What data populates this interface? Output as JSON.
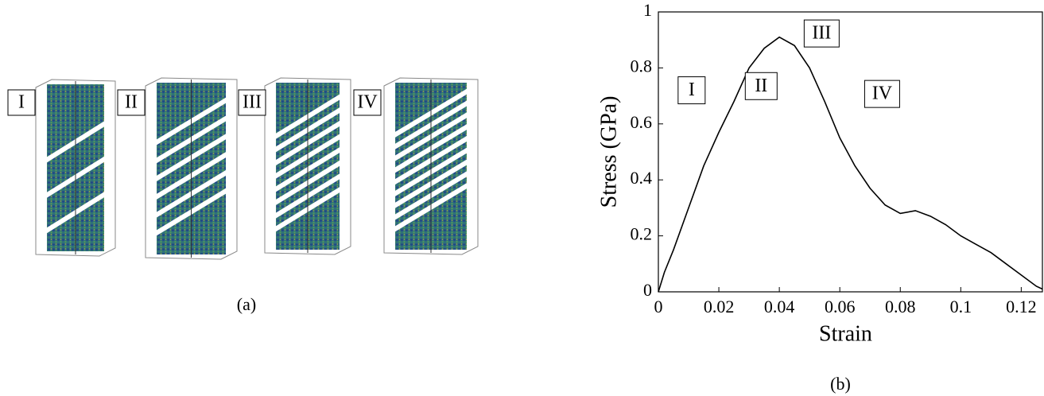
{
  "panel_a": {
    "labels": [
      "I",
      "II",
      "III",
      "IV"
    ],
    "caption": "(a)"
  },
  "chart_data": {
    "type": "line",
    "xlabel": "Strain",
    "ylabel": "Stress (GPa)",
    "caption": "(b)",
    "annotations": [
      "I",
      "II",
      "III",
      "IV"
    ],
    "x": [
      0,
      0.002,
      0.005,
      0.01,
      0.015,
      0.02,
      0.025,
      0.03,
      0.035,
      0.04,
      0.045,
      0.05,
      0.055,
      0.06,
      0.065,
      0.07,
      0.075,
      0.08,
      0.085,
      0.09,
      0.095,
      0.1,
      0.105,
      0.11,
      0.115,
      0.12,
      0.125,
      0.127
    ],
    "series": [
      {
        "color": "#000000",
        "values": [
          0,
          0.07,
          0.15,
          0.3,
          0.45,
          0.57,
          0.68,
          0.8,
          0.87,
          0.91,
          0.88,
          0.8,
          0.68,
          0.55,
          0.45,
          0.37,
          0.31,
          0.28,
          0.29,
          0.27,
          0.24,
          0.2,
          0.17,
          0.14,
          0.1,
          0.06,
          0.02,
          0.01
        ]
      }
    ],
    "xlim": [
      0,
      0.127
    ],
    "ylim": [
      0,
      1
    ],
    "xticks": [
      0,
      0.02,
      0.04,
      0.06,
      0.08,
      0.1,
      0.12
    ],
    "yticks": [
      0,
      0.2,
      0.4,
      0.6,
      0.8,
      1
    ]
  }
}
